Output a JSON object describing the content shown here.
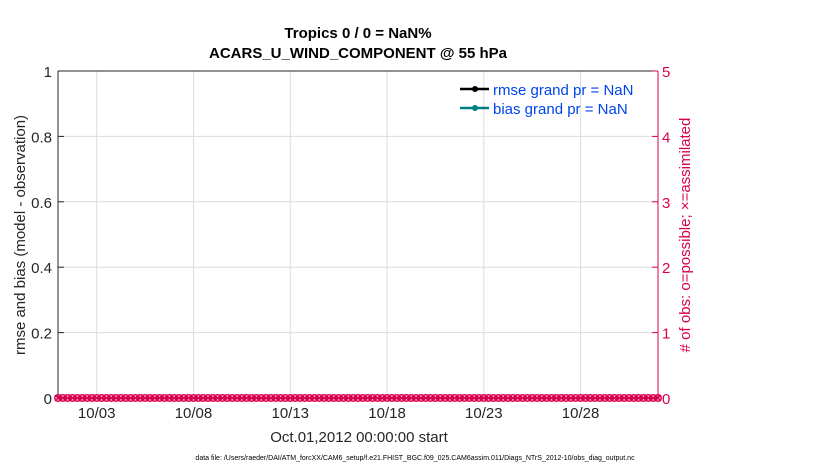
{
  "chart_data": {
    "type": "line",
    "title": [
      "Tropics 0 / 0 = NaN%",
      "ACARS_U_WIND_COMPONENT @ 55 hPa"
    ],
    "xlabel": "Oct.01,2012 00:00:00 start",
    "ylabel": "rmse and bias (model - observation)",
    "ylabel_right": "# of obs: o=possible; ×=assimilated",
    "xlim": [
      "2012-10-01",
      "2012-11-01"
    ],
    "x_ticks": [
      "10/03",
      "10/08",
      "10/13",
      "10/18",
      "10/23",
      "10/28"
    ],
    "x_tick_days": [
      2,
      7,
      12,
      17,
      22,
      27
    ],
    "ylim": [
      0,
      1
    ],
    "y_ticks": [
      "0",
      "0.2",
      "0.4",
      "0.6",
      "0.8",
      "1"
    ],
    "ylim_right": [
      0,
      5
    ],
    "y_ticks_right": [
      "0",
      "1",
      "2",
      "3",
      "4",
      "5"
    ],
    "grid": true,
    "legend_position": "top-right",
    "series": [
      {
        "name": "rmse grand pr = NaN",
        "color": "#000000",
        "values": "NaN"
      },
      {
        "name": "bias grand pr = NaN",
        "color": "#008080",
        "values": "NaN"
      },
      {
        "name_hidden": true,
        "color": "#d9004f",
        "kind": "obs count possible/assimilated",
        "value_all_times": 0,
        "interval_hours": 6
      }
    ],
    "footer": "data file: /Users/raeder/DAI/ATM_forcXX/CAM6_setup/f.e21.FHIST_BGC.f09_025.CAM6assim.011/Diags_NTrS_2012-10/obs_diag_output.nc"
  },
  "colors": {
    "accent_right": "#d9004f",
    "legend_text": "#0044ee"
  }
}
